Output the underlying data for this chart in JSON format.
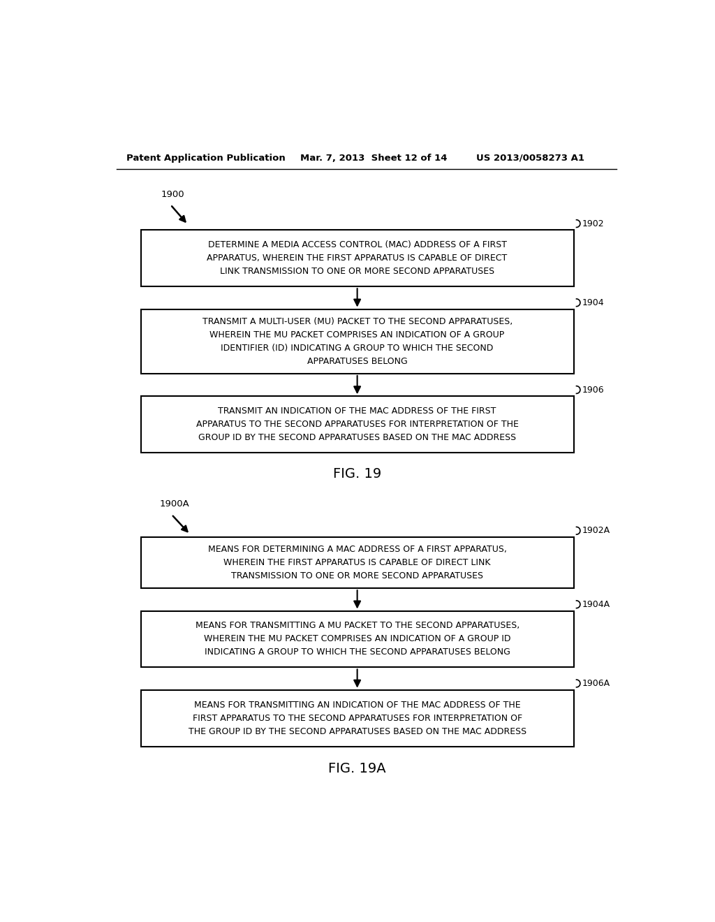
{
  "bg_color": "#ffffff",
  "header_left": "Patent Application Publication",
  "header_mid": "Mar. 7, 2013  Sheet 12 of 14",
  "header_right": "US 2013/0058273 A1",
  "fig19": {
    "label": "1900",
    "fig_label": "FIG. 19",
    "boxes": [
      {
        "id": "1902",
        "text": "DETERMINE A MEDIA ACCESS CONTROL (MAC) ADDRESS OF A FIRST\nAPPARATUS, WHEREIN THE FIRST APPARATUS IS CAPABLE OF DIRECT\nLINK TRANSMISSION TO ONE OR MORE SECOND APPARATUSES"
      },
      {
        "id": "1904",
        "text": "TRANSMIT A MULTI-USER (MU) PACKET TO THE SECOND APPARATUSES,\nWHEREIN THE MU PACKET COMPRISES AN INDICATION OF A GROUP\nIDENTIFIER (ID) INDICATING A GROUP TO WHICH THE SECOND\nAPPARATUSES BELONG"
      },
      {
        "id": "1906",
        "text": "TRANSMIT AN INDICATION OF THE MAC ADDRESS OF THE FIRST\nAPPARATUS TO THE SECOND APPARATUSES FOR INTERPRETATION OF THE\nGROUP ID BY THE SECOND APPARATUSES BASED ON THE MAC ADDRESS"
      }
    ]
  },
  "fig19a": {
    "label": "1900A",
    "fig_label": "FIG. 19A",
    "boxes": [
      {
        "id": "1902A",
        "text": "MEANS FOR DETERMINING A MAC ADDRESS OF A FIRST APPARATUS,\nWHEREIN THE FIRST APPARATUS IS CAPABLE OF DIRECT LINK\nTRANSMISSION TO ONE OR MORE SECOND APPARATUSES"
      },
      {
        "id": "1904A",
        "text": "MEANS FOR TRANSMITTING A MU PACKET TO THE SECOND APPARATUSES,\nWHEREIN THE MU PACKET COMPRISES AN INDICATION OF A GROUP ID\nINDICATING A GROUP TO WHICH THE SECOND APPARATUSES BELONG"
      },
      {
        "id": "1906A",
        "text": "MEANS FOR TRANSMITTING AN INDICATION OF THE MAC ADDRESS OF THE\nFIRST APPARATUS TO THE SECOND APPARATUSES FOR INTERPRETATION OF\nTHE GROUP ID BY THE SECOND APPARATUSES BASED ON THE MAC ADDRESS"
      }
    ]
  }
}
